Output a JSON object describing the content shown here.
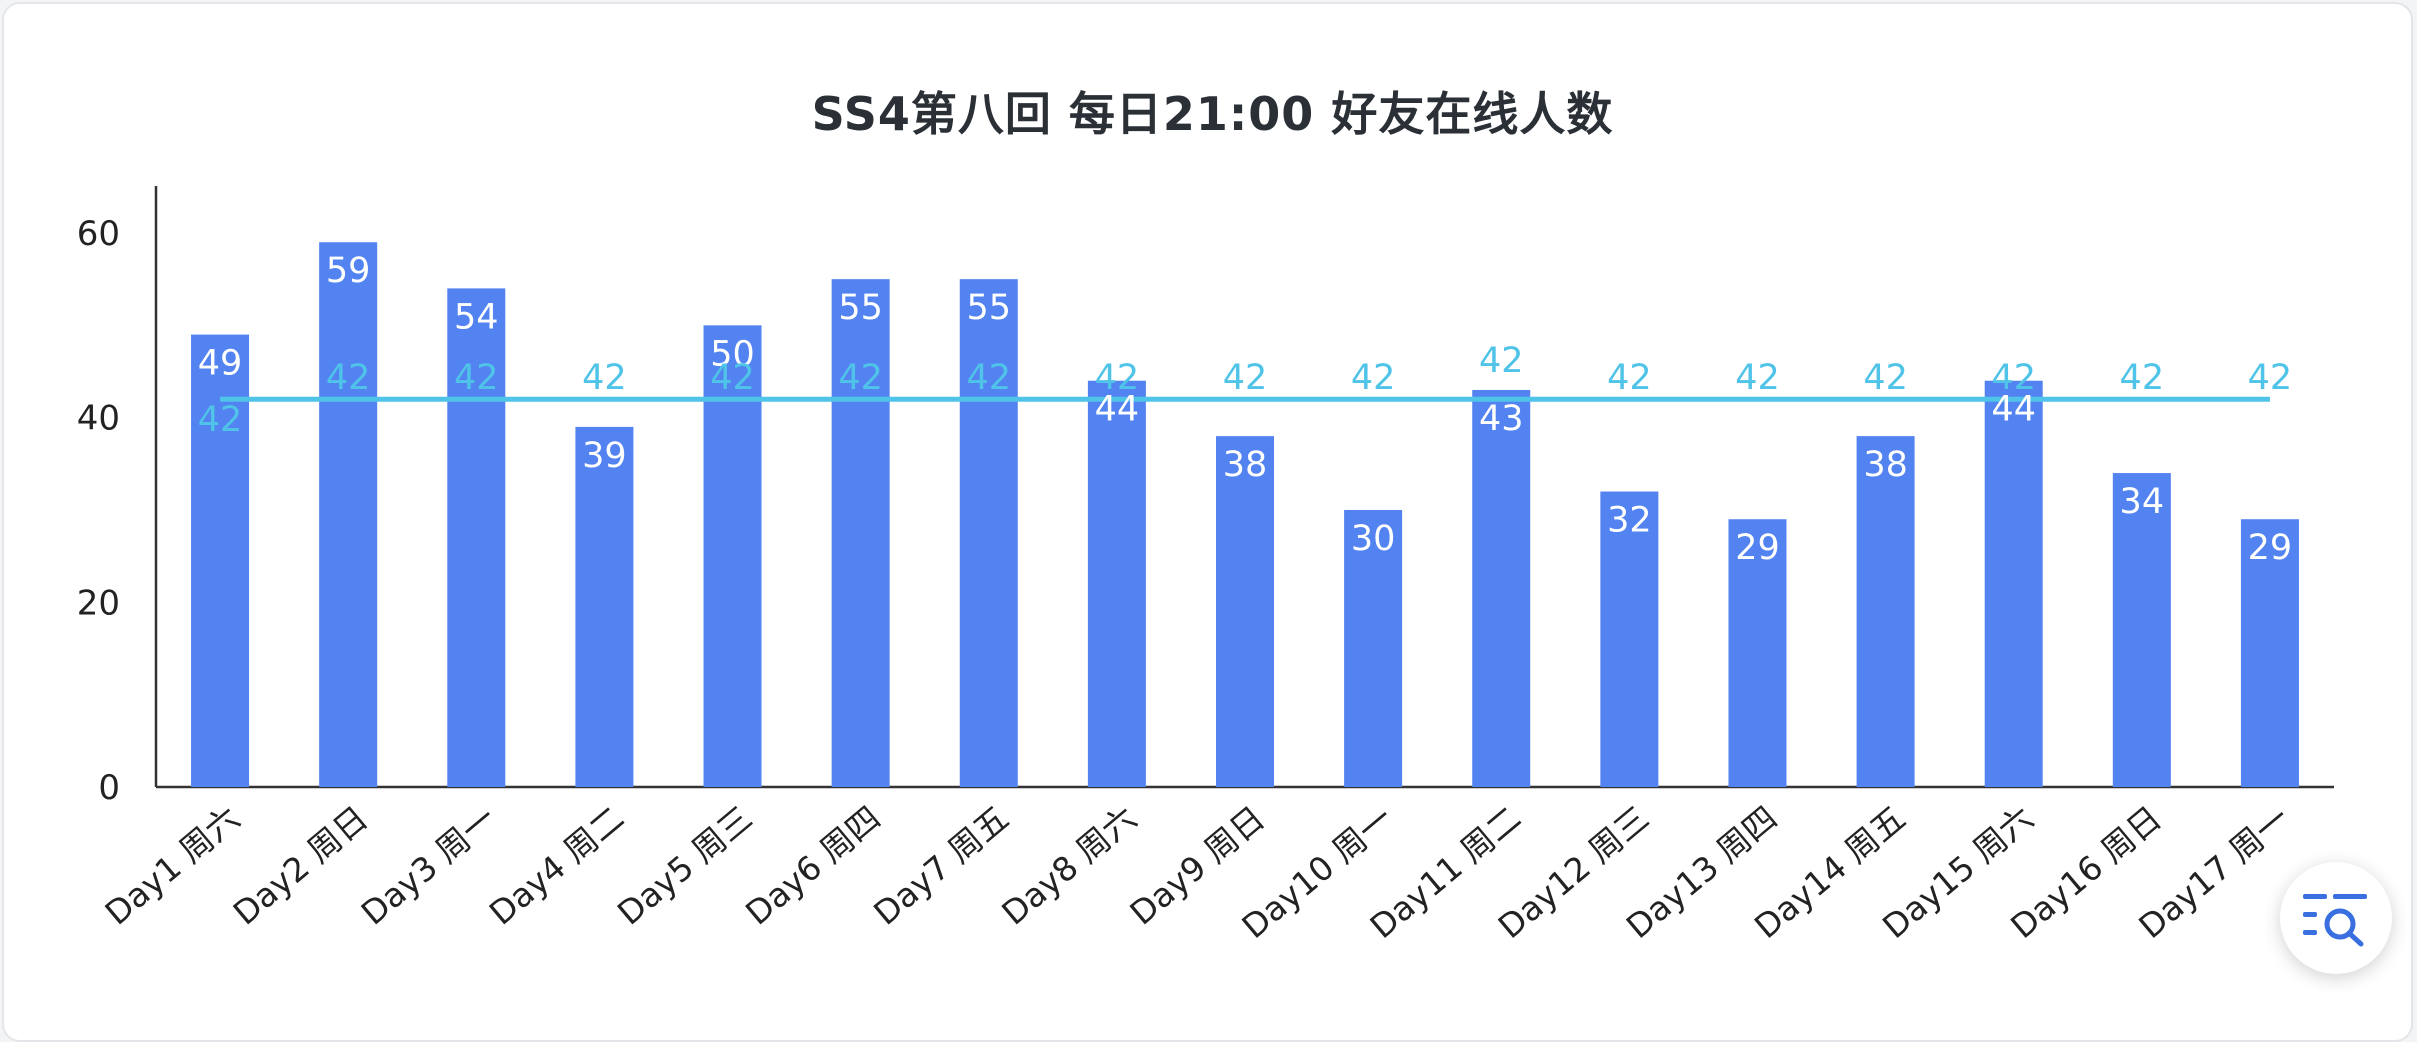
{
  "chart_data": {
    "type": "bar",
    "title": "SS4第八回 每日21:00 好友在线人数",
    "categories": [
      "Day1 周六",
      "Day2 周日",
      "Day3 周一",
      "Day4 周二",
      "Day5 周三",
      "Day6 周四",
      "Day7 周五",
      "Day8 周六",
      "Day9 周日",
      "Day10 周一",
      "Day11 周二",
      "Day12 周三",
      "Day13 周四",
      "Day14 周五",
      "Day15 周六",
      "Day16 周日",
      "Day17 周一"
    ],
    "series": [
      {
        "type": "bar",
        "values": [
          49,
          59,
          54,
          39,
          50,
          55,
          55,
          44,
          38,
          30,
          43,
          32,
          29,
          38,
          44,
          34,
          29
        ],
        "color": "#5283f0"
      },
      {
        "type": "line",
        "values": [
          42,
          42,
          42,
          42,
          42,
          42,
          42,
          42,
          42,
          42,
          42,
          42,
          42,
          42,
          42,
          42,
          42
        ],
        "color": "#4fc3e8"
      }
    ],
    "yticks": [
      "0",
      "20",
      "40",
      "60"
    ],
    "ylim": [
      0,
      65
    ],
    "grid": false,
    "xlabel": "",
    "ylabel": ""
  },
  "toolbar": {
    "fab_icon": "chart-search-icon"
  }
}
